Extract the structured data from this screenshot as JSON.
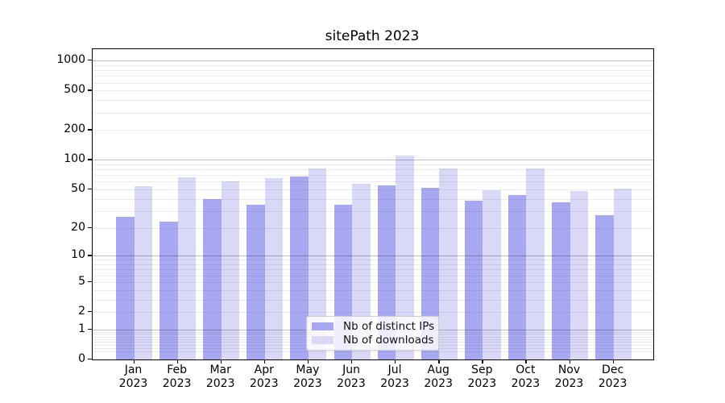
{
  "title": "sitePath 2023",
  "legend": {
    "items": [
      {
        "label": "Nb of distinct IPs",
        "color": "#a8a8f2"
      },
      {
        "label": "Nb of downloads",
        "color": "#d9d9f7"
      }
    ],
    "position": "lower center"
  },
  "colors": {
    "distinct_ips_bar": "#a8a8f2",
    "downloads_bar": "#d9d9f7",
    "major_grid": "#bdbdbd",
    "minor_grid": "#ebebeb",
    "axis": "#000000",
    "background": "#ffffff"
  },
  "chart_data": {
    "type": "bar",
    "title": "sitePath 2023",
    "categories": [
      "Jan 2023",
      "Feb 2023",
      "Mar 2023",
      "Apr 2023",
      "May 2023",
      "Jun 2023",
      "Jul 2023",
      "Aug 2023",
      "Sep 2023",
      "Oct 2023",
      "Nov 2023",
      "Dec 2023"
    ],
    "series": [
      {
        "name": "Nb of distinct IPs",
        "color": "#a8a8f2",
        "values": [
          26,
          23,
          40,
          35,
          68,
          35,
          55,
          52,
          38,
          44,
          37,
          27
        ]
      },
      {
        "name": "Nb of downloads",
        "color": "#d9d9f7",
        "values": [
          54,
          66,
          60,
          65,
          81,
          57,
          110,
          81,
          49,
          81,
          48,
          51
        ]
      }
    ],
    "xlabel": "",
    "ylabel": "",
    "y_ticks": [
      0,
      1,
      2,
      5,
      10,
      20,
      50,
      100,
      200,
      500,
      1000
    ],
    "y_scale": "log1p",
    "ylim": [
      0,
      1300
    ],
    "grid": "major and minor horizontal gridlines drawn above bars",
    "legend_position": "lower center"
  }
}
